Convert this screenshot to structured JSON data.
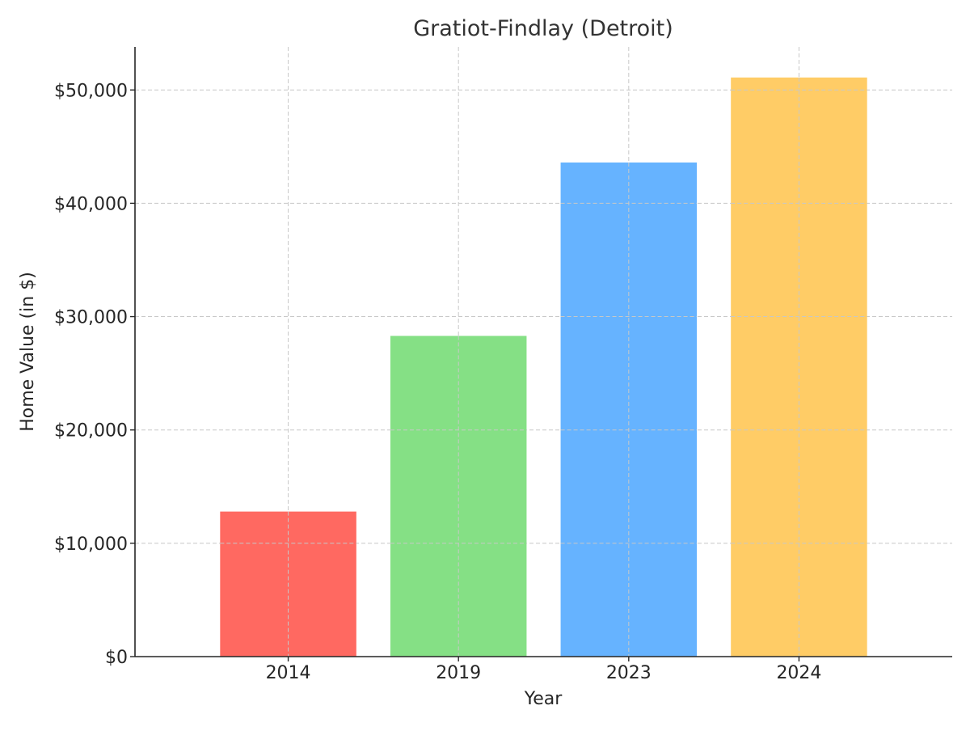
{
  "chart_data": {
    "type": "bar",
    "title": "Gratiot-Findlay (Detroit)",
    "xlabel": "Year",
    "ylabel": "Home Value (in $)",
    "categories": [
      "2014",
      "2019",
      "2023",
      "2024"
    ],
    "values": [
      12800,
      28300,
      43600,
      51100
    ],
    "colors": [
      "#ff6961",
      "#85e085",
      "#66b3ff",
      "#ffcc66"
    ],
    "ylim": [
      0,
      53800
    ],
    "yticks": [
      0,
      10000,
      20000,
      30000,
      40000,
      50000
    ],
    "ytick_labels": [
      "$0",
      "$10,000",
      "$20,000",
      "$30,000",
      "$40,000",
      "$50,000"
    ],
    "grid": true,
    "grid_style": "dashed"
  }
}
